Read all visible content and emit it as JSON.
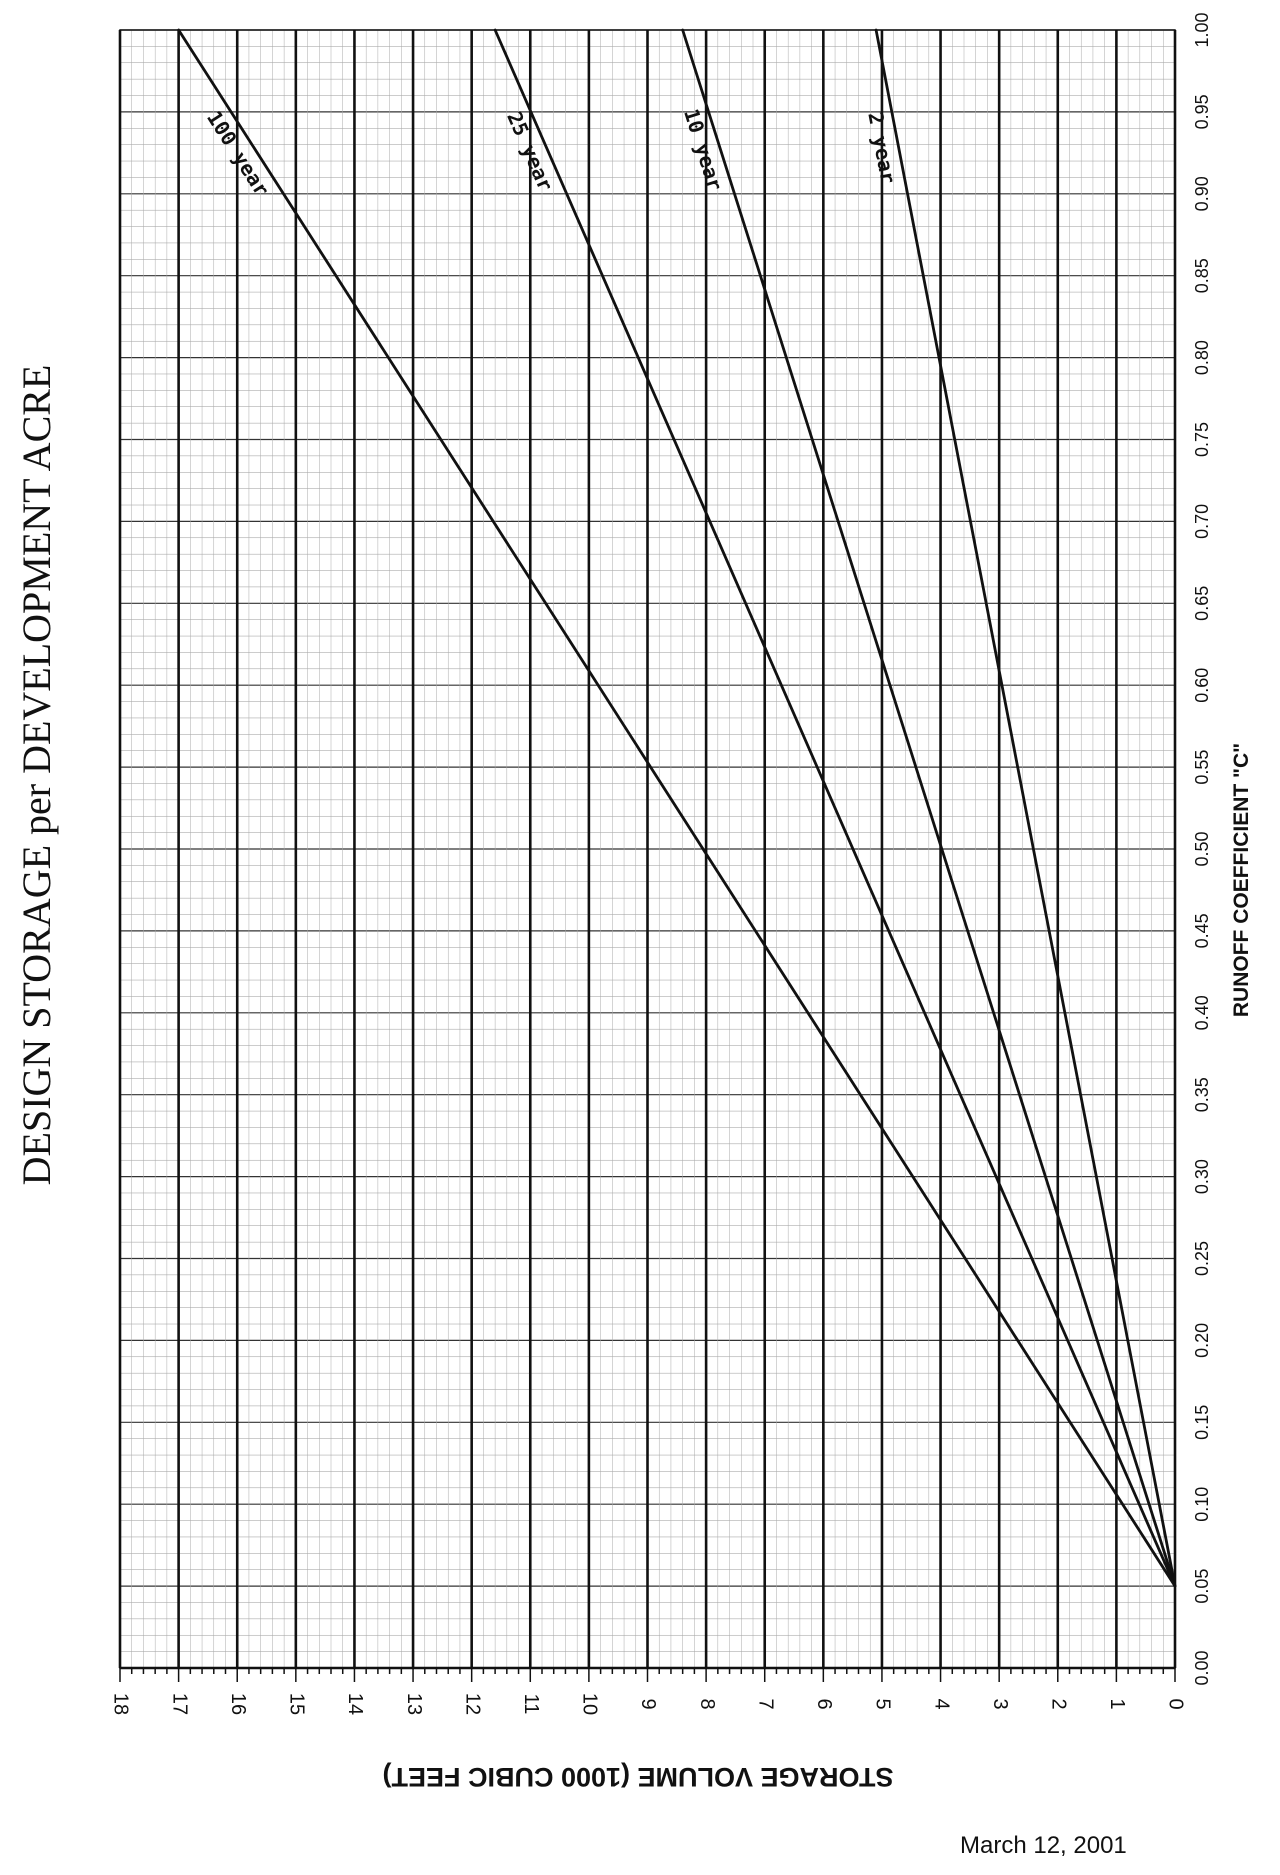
{
  "chart_data": {
    "type": "line",
    "title": "DESIGN STORAGE  per DEVELOPMENT ACRE",
    "xlabel": "RUNOFF COEFFICIENT \"C\"",
    "ylabel": "STORAGE VOLUME (1000 CUBIC FEET)",
    "xlim": [
      0.0,
      1.0
    ],
    "ylim": [
      0,
      18
    ],
    "x_ticks": [
      "0.00",
      "0.05",
      "0.10",
      "0.15",
      "0.20",
      "0.25",
      "0.30",
      "0.35",
      "0.40",
      "0.45",
      "0.50",
      "0.55",
      "0.60",
      "0.65",
      "0.70",
      "0.75",
      "0.80",
      "0.85",
      "0.90",
      "0.95",
      "1.00"
    ],
    "y_ticks": [
      "0",
      "1",
      "2",
      "3",
      "4",
      "5",
      "6",
      "7",
      "8",
      "9",
      "10",
      "11",
      "12",
      "13",
      "14",
      "15",
      "16",
      "17",
      "18"
    ],
    "grid": true,
    "series": [
      {
        "name": "2 year",
        "x": [
          0.05,
          1.0
        ],
        "y": [
          0,
          5.1
        ]
      },
      {
        "name": "10 year",
        "x": [
          0.05,
          1.0
        ],
        "y": [
          0,
          8.4
        ]
      },
      {
        "name": "25 year",
        "x": [
          0.05,
          1.0
        ],
        "y": [
          0,
          11.6
        ]
      },
      {
        "name": "100 year",
        "x": [
          0.05,
          1.0
        ],
        "y": [
          0,
          17.0
        ]
      }
    ]
  },
  "footer": {
    "date": "March 12, 2001"
  }
}
